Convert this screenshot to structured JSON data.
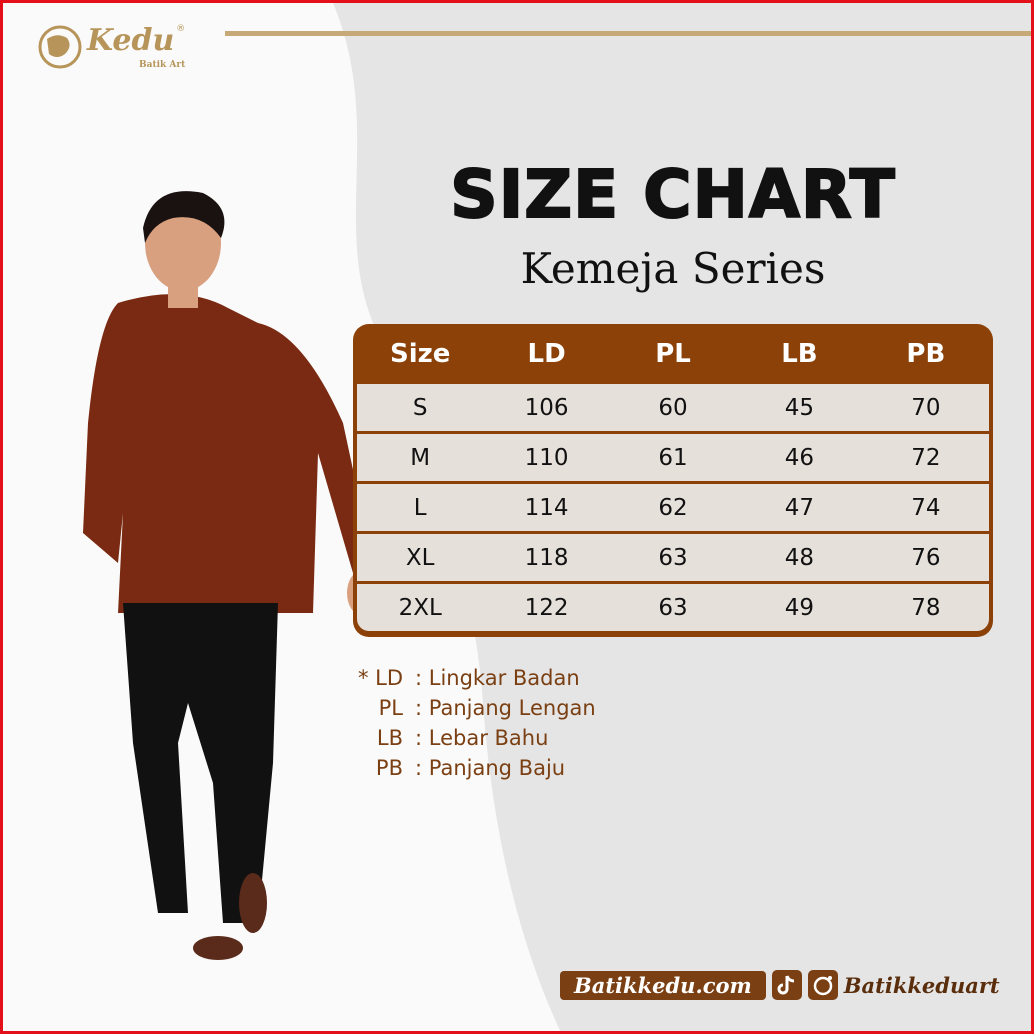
{
  "brand": {
    "name": "Kedu",
    "tagline": "Batik Art",
    "registered": "®"
  },
  "title": "SIZE CHART",
  "subtitle": "Kemeja Series",
  "colors": {
    "accent": "#8b4107",
    "gold": "#c7a977",
    "border": "#e3101a"
  },
  "table": {
    "headers": [
      "Size",
      "LD",
      "PL",
      "LB",
      "PB"
    ],
    "rows": [
      [
        "S",
        "106",
        "60",
        "45",
        "70"
      ],
      [
        "M",
        "110",
        "61",
        "46",
        "72"
      ],
      [
        "L",
        "114",
        "62",
        "47",
        "74"
      ],
      [
        "XL",
        "118",
        "63",
        "48",
        "76"
      ],
      [
        "2XL",
        "122",
        "63",
        "49",
        "78"
      ]
    ]
  },
  "legend": [
    {
      "key": "* LD",
      "value": ": Lingkar Badan"
    },
    {
      "key": "PL",
      "value": ": Panjang Lengan"
    },
    {
      "key": "LB",
      "value": ": Lebar Bahu"
    },
    {
      "key": "PB",
      "value": ": Panjang Baju"
    }
  ],
  "footer": {
    "website": "Batikkedu.com",
    "social_handle": "Batikkeduart",
    "icons": [
      "tiktok-icon",
      "instagram-icon"
    ]
  }
}
